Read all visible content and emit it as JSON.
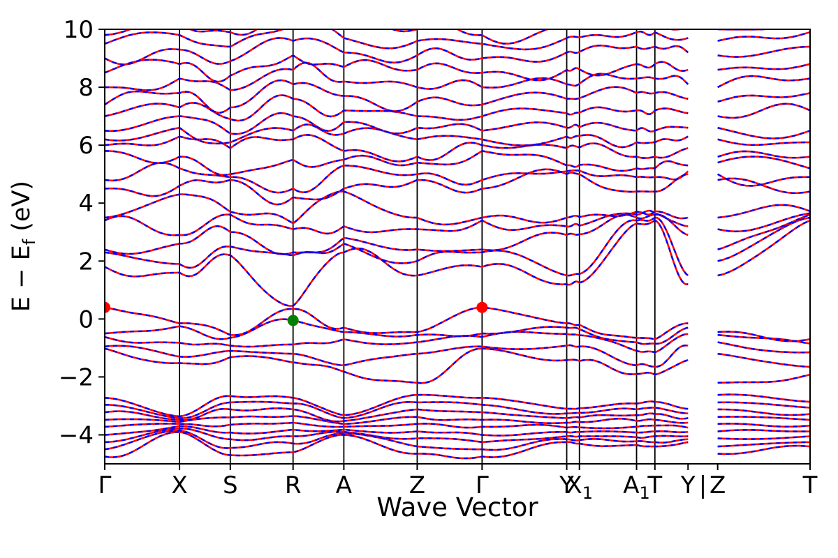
{
  "figure": {
    "xlabel": "Wave Vector",
    "ylabel_pre": "E − E",
    "ylabel_sub": "f",
    "ylabel_post": " (eV)"
  },
  "chart_data": {
    "type": "line",
    "title": "",
    "xlabel": "Wave Vector",
    "ylabel": "E - E_f (eV)",
    "description": "Electronic band structure along high-symmetry k-path; red solid reference bands overlaid by blue dashed bands",
    "ylim": [
      -5,
      10
    ],
    "yticks": [
      -4,
      -2,
      0,
      2,
      4,
      6,
      8,
      10
    ],
    "x_nodes": [
      0.0,
      0.106,
      0.178,
      0.267,
      0.339,
      0.443,
      0.535,
      0.655,
      0.673,
      0.754,
      0.78,
      0.827,
      0.869,
      1.0
    ],
    "x_tick_labels": [
      {
        "base": "Γ"
      },
      {
        "base": "X"
      },
      {
        "base": "S"
      },
      {
        "base": "R"
      },
      {
        "base": "A"
      },
      {
        "base": "Z"
      },
      {
        "base": "Γ"
      },
      {
        "base": "Y"
      },
      {
        "base": "X",
        "sub": "1"
      },
      {
        "base": "A",
        "sub": "1"
      },
      {
        "base": "T"
      },
      {
        "base": "Y"
      },
      {
        "base": "Z"
      },
      {
        "base": "T"
      }
    ],
    "path_break": {
      "after_node": 11,
      "separator": "|",
      "separator_f": 0.848
    },
    "vline_nodes": [
      1,
      2,
      3,
      4,
      5,
      6,
      7,
      8,
      9,
      10
    ],
    "axis_color": "#000000",
    "series_style": [
      {
        "name": "reference-bands",
        "color": "#ff0000",
        "dash": "none",
        "width": 2.6
      },
      {
        "name": "overlay-bands",
        "color": "#0000ff",
        "dash": "6 6",
        "width": 2.4
      }
    ],
    "bands": [
      [
        -4.75,
        -3.9,
        -4.7,
        -4.6,
        -4.0,
        -4.65,
        -4.75,
        -4.25,
        -4.3,
        -4.35,
        -4.4,
        -4.25,
        -4.65,
        -4.4
      ],
      [
        -4.5,
        -3.85,
        -4.45,
        -4.3,
        -3.95,
        -4.4,
        -4.5,
        -4.15,
        -4.18,
        -4.22,
        -4.25,
        -4.15,
        -4.4,
        -4.25
      ],
      [
        -4.25,
        -3.78,
        -4.15,
        -4.05,
        -3.9,
        -4.12,
        -4.25,
        -4.05,
        -4.05,
        -4.08,
        -4.05,
        -4.05,
        -4.12,
        -4.05
      ],
      [
        -4.0,
        -3.7,
        -3.92,
        -3.82,
        -3.82,
        -3.88,
        -4.0,
        -3.9,
        -3.9,
        -3.92,
        -3.88,
        -3.9,
        -3.88,
        -3.88
      ],
      [
        -3.72,
        -3.62,
        -3.65,
        -3.58,
        -3.72,
        -3.62,
        -3.72,
        -3.75,
        -3.74,
        -3.72,
        -3.68,
        -3.75,
        -3.62,
        -3.68
      ],
      [
        -3.48,
        -3.55,
        -3.4,
        -3.35,
        -3.62,
        -3.38,
        -3.48,
        -3.58,
        -3.56,
        -3.52,
        -3.48,
        -3.58,
        -3.38,
        -3.48
      ],
      [
        -3.22,
        -3.48,
        -3.12,
        -3.12,
        -3.52,
        -3.12,
        -3.22,
        -3.42,
        -3.4,
        -3.32,
        -3.28,
        -3.42,
        -3.12,
        -3.28
      ],
      [
        -2.96,
        -3.42,
        -2.88,
        -2.92,
        -3.42,
        -2.88,
        -2.96,
        -3.26,
        -3.24,
        -3.12,
        -3.06,
        -3.26,
        -2.88,
        -3.06
      ],
      [
        -2.72,
        -3.36,
        -2.66,
        -2.72,
        -3.32,
        -2.62,
        -2.72,
        -3.1,
        -3.08,
        -2.92,
        -2.86,
        -3.1,
        -2.62,
        -2.86
      ],
      [
        0.4,
        -0.15,
        -0.55,
        0.35,
        -0.3,
        -0.45,
        0.4,
        -0.15,
        -0.2,
        -0.65,
        -0.7,
        -0.15,
        -0.45,
        -0.7
      ],
      [
        -0.5,
        -0.25,
        -0.65,
        -0.05,
        -0.45,
        -0.55,
        -0.5,
        -0.3,
        -0.35,
        -0.8,
        -0.85,
        -0.3,
        -0.55,
        -0.85
      ],
      [
        -0.62,
        -0.82,
        -0.92,
        -0.88,
        -0.7,
        -0.8,
        -0.62,
        -0.52,
        -0.56,
        -1.1,
        -1.15,
        -0.52,
        -0.8,
        -1.15
      ],
      [
        -0.95,
        -1.3,
        -1.1,
        -1.2,
        -1.6,
        -1.2,
        -0.95,
        -0.92,
        -0.95,
        -1.6,
        -1.65,
        -0.92,
        -1.2,
        -1.65
      ],
      [
        -1.02,
        -1.52,
        -1.32,
        -1.5,
        -1.82,
        -2.2,
        -1.02,
        -1.42,
        -1.45,
        -1.9,
        -1.92,
        -1.42,
        -2.2,
        -1.92
      ],
      [
        1.8,
        1.6,
        2.2,
        0.45,
        2.3,
        1.5,
        1.8,
        1.2,
        1.25,
        3.3,
        3.4,
        1.2,
        1.5,
        3.4
      ],
      [
        2.3,
        1.9,
        2.5,
        2.2,
        2.6,
        2.0,
        2.3,
        1.5,
        1.55,
        3.4,
        3.5,
        1.5,
        2.0,
        3.5
      ],
      [
        2.4,
        2.6,
        3.0,
        2.3,
        2.8,
        2.4,
        2.4,
        2.9,
        2.92,
        3.5,
        3.6,
        2.9,
        2.4,
        3.6
      ],
      [
        3.4,
        2.9,
        3.6,
        3.1,
        3.2,
        3.1,
        3.4,
        3.2,
        3.22,
        3.6,
        3.65,
        3.2,
        3.1,
        3.65
      ],
      [
        3.5,
        4.3,
        3.7,
        3.3,
        4.4,
        3.5,
        3.5,
        3.5,
        3.52,
        3.7,
        3.72,
        3.5,
        3.5,
        3.72
      ],
      [
        4.5,
        4.6,
        4.8,
        4.2,
        4.5,
        4.8,
        4.5,
        5.0,
        5.0,
        4.4,
        4.4,
        5.0,
        4.8,
        4.4
      ],
      [
        4.8,
        5.2,
        4.9,
        4.5,
        5.3,
        5.0,
        4.8,
        5.1,
        5.12,
        4.9,
        4.9,
        5.1,
        5.0,
        4.9
      ],
      [
        5.8,
        5.6,
        5.0,
        5.5,
        5.5,
        5.4,
        5.8,
        5.3,
        5.32,
        5.2,
        5.2,
        5.3,
        5.4,
        5.2
      ],
      [
        6.0,
        6.3,
        5.9,
        6.2,
        5.8,
        5.6,
        6.0,
        5.9,
        5.92,
        5.6,
        5.6,
        5.9,
        5.6,
        5.6
      ],
      [
        6.2,
        6.6,
        6.1,
        6.5,
        6.4,
        6.2,
        6.2,
        6.3,
        6.32,
        6.1,
        6.1,
        6.3,
        6.2,
        6.1
      ],
      [
        6.5,
        7.0,
        6.4,
        7.0,
        6.8,
        6.6,
        6.5,
        6.6,
        6.62,
        6.5,
        6.5,
        6.6,
        6.6,
        6.5
      ],
      [
        7.0,
        7.3,
        6.9,
        7.6,
        7.2,
        7.0,
        7.0,
        7.1,
        7.12,
        7.2,
        7.2,
        7.1,
        7.0,
        7.2
      ],
      [
        7.4,
        7.8,
        7.3,
        8.1,
        7.7,
        7.5,
        7.4,
        7.6,
        7.62,
        7.8,
        7.8,
        7.6,
        7.5,
        7.8
      ],
      [
        8.0,
        8.3,
        7.9,
        8.6,
        8.2,
        8.0,
        8.0,
        8.1,
        8.12,
        8.3,
        8.3,
        8.1,
        8.0,
        8.3
      ],
      [
        8.5,
        8.8,
        8.4,
        9.1,
        8.7,
        8.6,
        8.5,
        8.6,
        8.62,
        8.8,
        8.8,
        8.6,
        8.6,
        8.8
      ],
      [
        9.0,
        9.3,
        8.9,
        9.6,
        9.2,
        9.1,
        9.0,
        9.2,
        9.22,
        9.4,
        9.4,
        9.2,
        9.1,
        9.4
      ],
      [
        9.5,
        9.8,
        9.4,
        10.1,
        9.7,
        9.6,
        9.5,
        9.7,
        9.72,
        9.9,
        9.9,
        9.7,
        9.6,
        9.9
      ],
      [
        9.8,
        10.2,
        9.9,
        10.5,
        10.1,
        10.0,
        9.8,
        10.1,
        10.12,
        10.3,
        10.3,
        10.1,
        10.0,
        10.3
      ]
    ],
    "markers": [
      {
        "name": "gamma-point-marker-left",
        "f": 0.0,
        "e": 0.4,
        "color": "#ff0000",
        "r": 8
      },
      {
        "name": "r-point-marker",
        "f": 0.267,
        "e": -0.05,
        "color": "#008000",
        "r": 8
      },
      {
        "name": "gamma-point-marker-center",
        "f": 0.535,
        "e": 0.4,
        "color": "#ff0000",
        "r": 8
      }
    ]
  }
}
